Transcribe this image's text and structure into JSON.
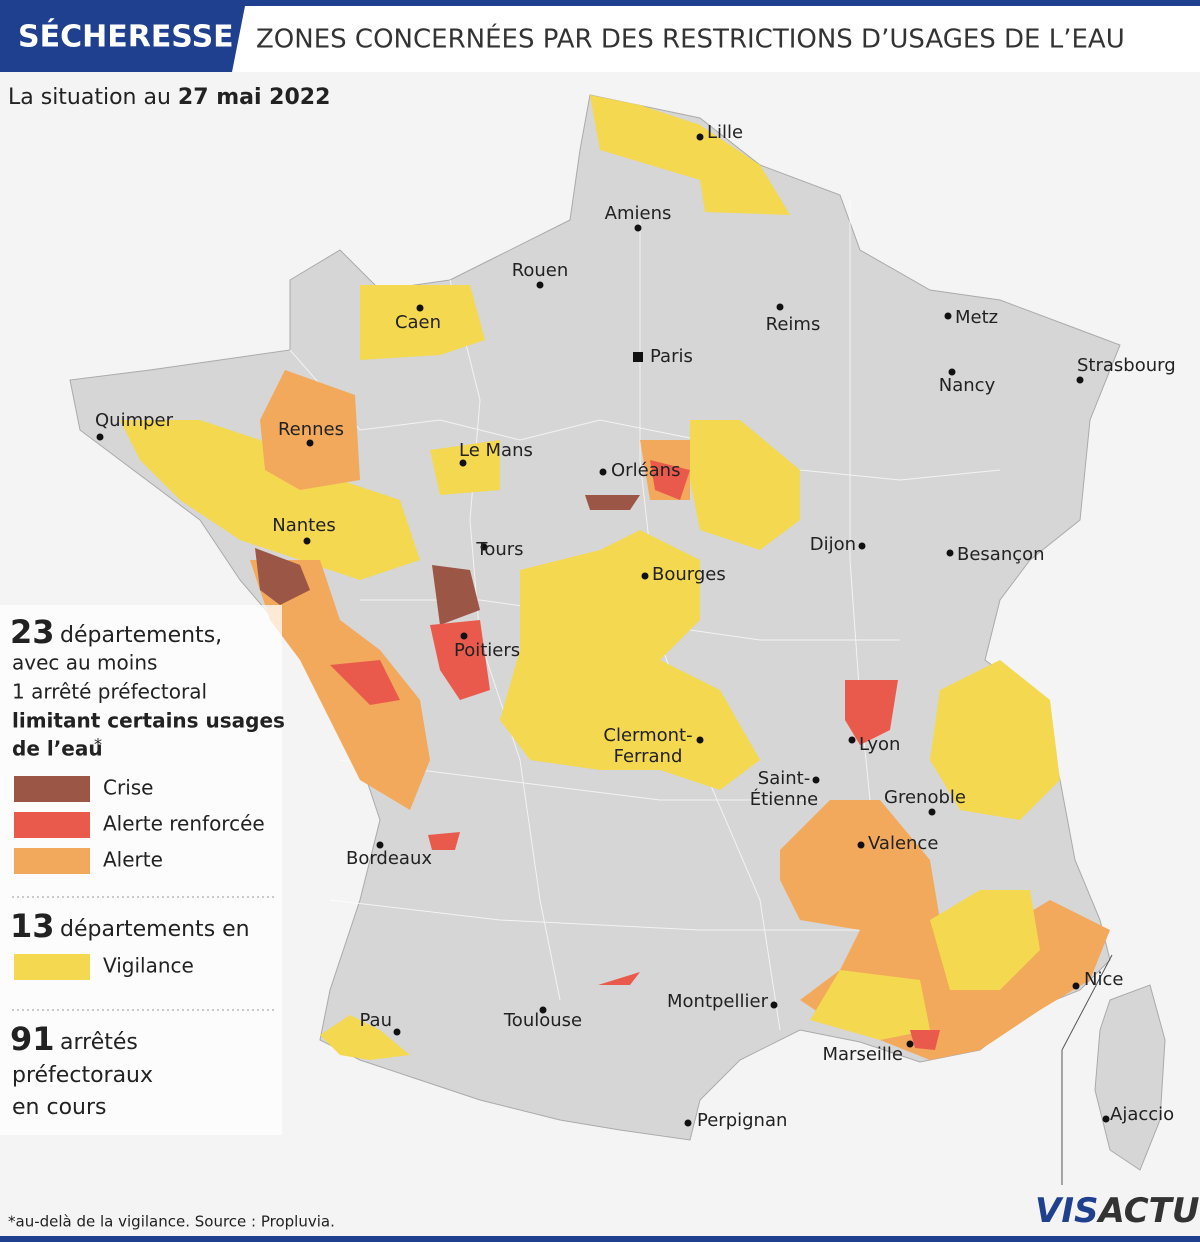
{
  "header": {
    "tag": "SÉCHERESSE",
    "title": "ZONES CONCERNÉES PAR DES RESTRICTIONS D’USAGES DE L’EAU"
  },
  "date": {
    "prefix": "La situation au",
    "value": "27 mai 2022"
  },
  "summary": [
    {
      "number": "23",
      "lines": [
        "départements,",
        "avec au moins",
        "1 arrêté préfectoral"
      ],
      "bold_lines": [
        "limitant certains usages",
        "de l’eau"
      ],
      "mark": "*"
    },
    {
      "number": "13",
      "lines": [
        "départements en"
      ]
    },
    {
      "number": "91",
      "lines": [
        "arrêtés",
        "préfectoraux",
        "en cours"
      ]
    }
  ],
  "legend": [
    {
      "label": "Crise",
      "color": "#9c5646"
    },
    {
      "label": "Alerte renforcée",
      "color": "#e95a4c"
    },
    {
      "label": "Alerte",
      "color": "#f2a95c"
    },
    {
      "label": "Vigilance",
      "color": "#f4d84f"
    }
  ],
  "cities": [
    {
      "lines": [
        "Lille"
      ]
    },
    {
      "lines": [
        "Amiens"
      ]
    },
    {
      "lines": [
        "Rouen"
      ]
    },
    {
      "lines": [
        "Caen"
      ]
    },
    {
      "lines": [
        "Reims"
      ]
    },
    {
      "lines": [
        "Metz"
      ]
    },
    {
      "lines": [
        "Paris"
      ]
    },
    {
      "lines": [
        "Strasbourg"
      ]
    },
    {
      "lines": [
        "Nancy"
      ]
    },
    {
      "lines": [
        "Quimper"
      ]
    },
    {
      "lines": [
        "Rennes"
      ]
    },
    {
      "lines": [
        "Le Mans"
      ]
    },
    {
      "lines": [
        "Orléans"
      ]
    },
    {
      "lines": [
        "Nantes"
      ]
    },
    {
      "lines": [
        "Tours"
      ]
    },
    {
      "lines": [
        "Dijon"
      ]
    },
    {
      "lines": [
        "Besançon"
      ]
    },
    {
      "lines": [
        "Bourges"
      ]
    },
    {
      "lines": [
        "Poitiers"
      ]
    },
    {
      "lines": [
        "Clermont-",
        "Ferrand"
      ]
    },
    {
      "lines": [
        "Lyon"
      ]
    },
    {
      "lines": [
        "Saint-",
        "Étienne"
      ]
    },
    {
      "lines": [
        "Grenoble"
      ]
    },
    {
      "lines": [
        "Valence"
      ]
    },
    {
      "lines": [
        "Bordeaux"
      ]
    },
    {
      "lines": [
        "Nice"
      ]
    },
    {
      "lines": [
        "Montpellier"
      ]
    },
    {
      "lines": [
        "Toulouse"
      ]
    },
    {
      "lines": [
        "Pau"
      ]
    },
    {
      "lines": [
        "Marseille"
      ]
    },
    {
      "lines": [
        "Perpignan"
      ]
    },
    {
      "lines": [
        "Ajaccio"
      ]
    }
  ],
  "footer": {
    "note": "*au-delà de la vigilance. Source : Propluvia.",
    "logo_a": "VIS",
    "logo_b": "ACTU"
  }
}
